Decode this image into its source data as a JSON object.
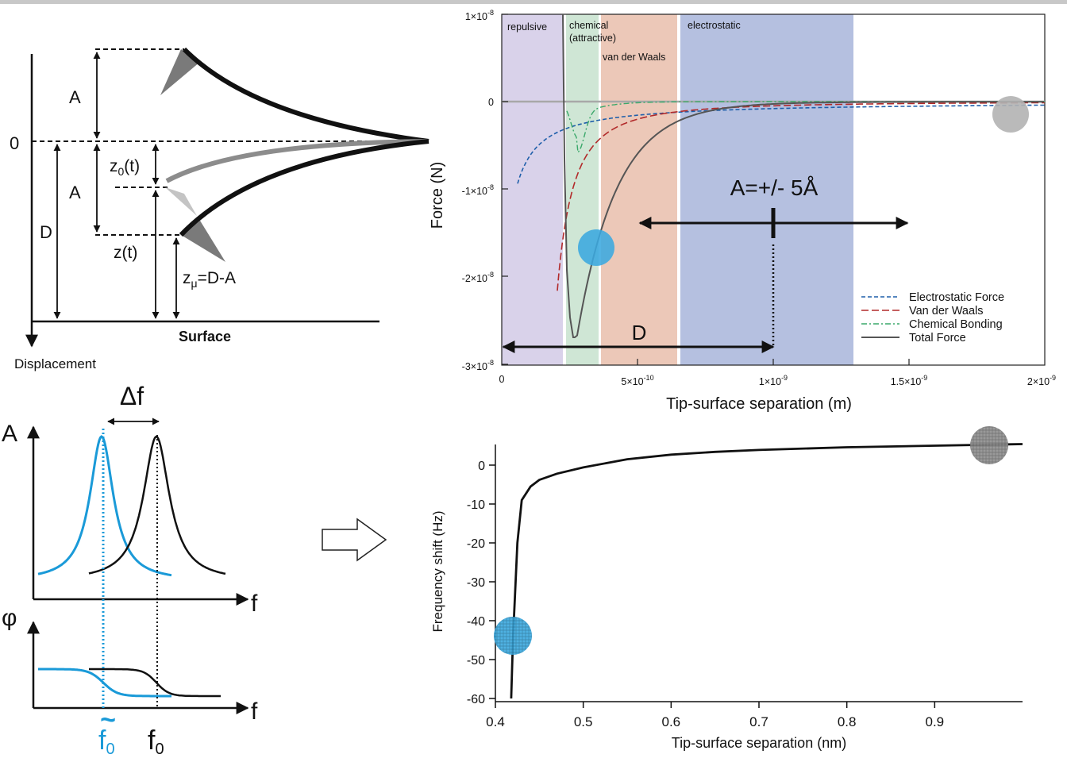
{
  "colors": {
    "tilde_f": "#1a9ad8",
    "repulsive": "#d9d2ea",
    "chemical": "#cfe6d5",
    "vdw": "#ecc8b8",
    "electrostatic": "#b5c0e0",
    "electrostatic_force": "#1f5faa",
    "van_der_waals": "#b22a2a",
    "chemical_bonding": "#3aa86a",
    "total_force": "#555555",
    "blue_marker": "#3ba8df",
    "grey_marker": "#b3b3b3"
  },
  "cantilever": {
    "zero": "0",
    "A_top": "A",
    "A_mid": "A",
    "D": "D",
    "z0_main": "z",
    "z0_sub": "0",
    "z0_tail": "(t)",
    "zt": "z(t)",
    "zmu_main": "z",
    "zmu_sub": "μ",
    "zmu_tail": "=D-A",
    "surface": "Surface",
    "displacement": "Displacement"
  },
  "resonance": {
    "delta_f": "Δf",
    "A_axis": "A",
    "f_axis_top": "f",
    "phi_axis": "φ",
    "f_axis_bottom": "f",
    "tilde": "~",
    "f0_blue_main": "f",
    "f0_blue_sub": "0",
    "f0_black_main": "f",
    "f0_black_sub": "0"
  },
  "force_plot": {
    "regions": {
      "repulsive": "repulsive",
      "chemical_1": "chemical",
      "chemical_2": "(attractive)",
      "vdw": "van der Waals",
      "electrostatic": "electrostatic"
    },
    "amplitude_label": "A=+/- 5Å",
    "d_label": "D",
    "ylabel": "Force (N)",
    "xlabel": "Tip-surface separation (m)",
    "yticks": [
      {
        "m": "1×10",
        "e": "-8"
      },
      {
        "m": "0",
        "e": ""
      },
      {
        "m": "-1×10",
        "e": "-8"
      },
      {
        "m": "-2×10",
        "e": "-8"
      },
      {
        "m": "-3×10",
        "e": "-8"
      }
    ],
    "xticks": [
      {
        "m": "0",
        "e": ""
      },
      {
        "m": "5×10",
        "e": "-10"
      },
      {
        "m": "1×10",
        "e": "-9"
      },
      {
        "m": "1.5×10",
        "e": "-9"
      },
      {
        "m": "2×10",
        "e": "-9"
      }
    ],
    "legend": [
      "Electrostatic Force",
      "Van der Waals",
      "Chemical Bonding",
      "Total Force"
    ]
  },
  "freq_plot": {
    "ylabel": "Frequency shift (Hz)",
    "xlabel": "Tip-surface separation (nm)",
    "yticks": [
      "0",
      "-10",
      "-20",
      "-30",
      "-40",
      "-50",
      "-60"
    ],
    "xticks": [
      "0.4",
      "0.5",
      "0.6",
      "0.7",
      "0.8",
      "0.9"
    ]
  },
  "chart_data": {
    "type": "line",
    "xlabel": "Tip-surface separation (nm)",
    "ylabel": "Frequency shift (Hz)",
    "xlim": [
      0.4,
      1.0
    ],
    "ylim": [
      -61,
      5
    ],
    "x": [
      0.418,
      0.42,
      0.425,
      0.43,
      0.44,
      0.45,
      0.47,
      0.5,
      0.55,
      0.6,
      0.65,
      0.7,
      0.8,
      0.9,
      1.0
    ],
    "values": [
      -60,
      -45,
      -20,
      -9,
      -5.5,
      -3.8,
      -2.2,
      -0.6,
      1.5,
      2.7,
      3.4,
      3.9,
      4.6,
      5.0,
      5.4
    ]
  }
}
